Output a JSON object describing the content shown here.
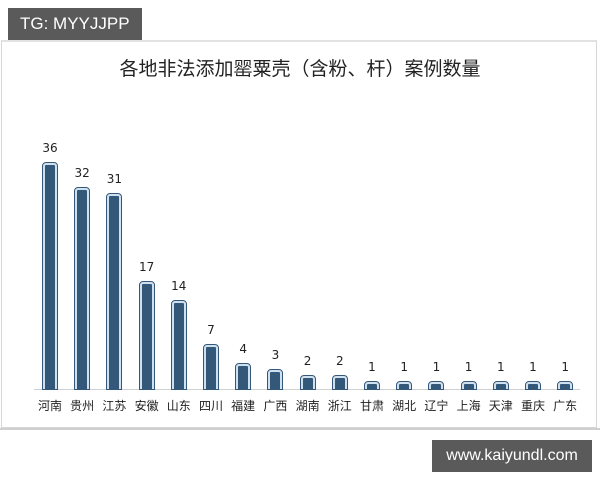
{
  "watermark_top": "TG: MYYJJPP",
  "watermark_bottom": "www.kaiyundl.com",
  "colors": {
    "bar": "#34587a",
    "bar_highlight": "#cfe0ee",
    "axis": "#d0d0d0",
    "watermark_bg": "#5a5a5a"
  },
  "chart_data": {
    "type": "bar",
    "title": "各地非法添加罂粟壳（含粉、杆）案例数量",
    "xlabel": "",
    "ylabel": "",
    "categories": [
      "河南",
      "贵州",
      "江苏",
      "安徽",
      "山东",
      "四川",
      "福建",
      "广西",
      "湖南",
      "浙江",
      "甘肃",
      "湖北",
      "辽宁",
      "上海",
      "天津",
      "重庆",
      "广东"
    ],
    "values": [
      36,
      32,
      31,
      17,
      14,
      7,
      4,
      3,
      2,
      2,
      1,
      1,
      1,
      1,
      1,
      1,
      1
    ],
    "ylim": [
      0,
      40
    ],
    "grid": false,
    "legend": "none",
    "data_labels": true
  }
}
